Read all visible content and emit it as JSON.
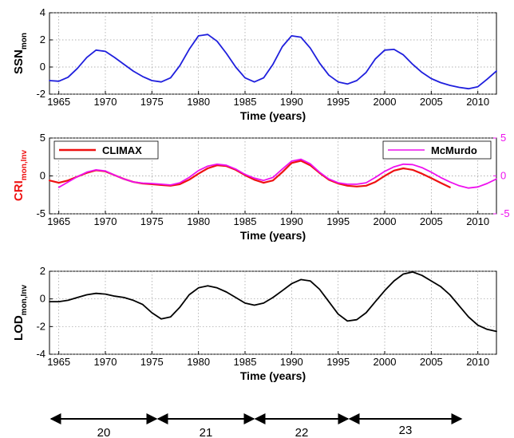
{
  "chart_data": [
    {
      "type": "line",
      "ylabel": "SSN",
      "ylabel_sub": "mon",
      "xlabel": "Time (years)",
      "xlim": [
        1964,
        2012
      ],
      "ylim": [
        -2,
        4
      ],
      "xticks": [
        1965,
        1970,
        1975,
        1980,
        1985,
        1990,
        1995,
        2000,
        2005,
        2010
      ],
      "yticks": [
        -2,
        0,
        2,
        4
      ],
      "grid": true,
      "series": [
        {
          "color": "#1f1fdd",
          "x": [
            1964,
            1965,
            1966,
            1967,
            1968,
            1969,
            1970,
            1971,
            1972,
            1973,
            1974,
            1975,
            1976,
            1977,
            1978,
            1979,
            1980,
            1981,
            1982,
            1983,
            1984,
            1985,
            1986,
            1987,
            1988,
            1989,
            1990,
            1991,
            1992,
            1993,
            1994,
            1995,
            1996,
            1997,
            1998,
            1999,
            2000,
            2001,
            2002,
            2003,
            2004,
            2005,
            2006,
            2007,
            2008,
            2009,
            2010,
            2011,
            2012
          ],
          "y": [
            -1.0,
            -1.05,
            -0.75,
            -0.1,
            0.7,
            1.25,
            1.15,
            0.7,
            0.2,
            -0.3,
            -0.7,
            -1.0,
            -1.1,
            -0.8,
            0.1,
            1.3,
            2.3,
            2.4,
            1.9,
            1.0,
            0.0,
            -0.8,
            -1.1,
            -0.8,
            0.2,
            1.5,
            2.3,
            2.2,
            1.4,
            0.3,
            -0.6,
            -1.1,
            -1.25,
            -1.0,
            -0.4,
            0.6,
            1.25,
            1.3,
            0.9,
            0.2,
            -0.4,
            -0.85,
            -1.15,
            -1.35,
            -1.5,
            -1.6,
            -1.45,
            -0.9,
            -0.3
          ]
        }
      ]
    },
    {
      "type": "line",
      "ylabel": "CRI",
      "ylabel_sub": "mon,Inv",
      "xlabel": "Time (years)",
      "xlim": [
        1964,
        2012
      ],
      "ylim": [
        -5,
        5
      ],
      "ylim_right": [
        -5,
        5
      ],
      "xticks": [
        1965,
        1970,
        1975,
        1980,
        1985,
        1990,
        1995,
        2000,
        2005,
        2010
      ],
      "yticks": [
        -5,
        0,
        5
      ],
      "yticks_right": [
        -5,
        0,
        5
      ],
      "grid": true,
      "legend": [
        "top-left",
        "top-right"
      ],
      "series": [
        {
          "name": "CLIMAX",
          "color": "#ee1111",
          "x": [
            1964,
            1965,
            1966,
            1967,
            1968,
            1969,
            1970,
            1971,
            1972,
            1973,
            1974,
            1975,
            1976,
            1977,
            1978,
            1979,
            1980,
            1981,
            1982,
            1983,
            1984,
            1985,
            1986,
            1987,
            1988,
            1989,
            1990,
            1991,
            1992,
            1993,
            1994,
            1995,
            1996,
            1997,
            1998,
            1999,
            2000,
            2001,
            2002,
            2003,
            2004,
            2005,
            2006,
            2007
          ],
          "y": [
            -0.6,
            -0.9,
            -0.6,
            -0.1,
            0.4,
            0.75,
            0.6,
            0.1,
            -0.4,
            -0.8,
            -1.0,
            -1.1,
            -1.2,
            -1.3,
            -1.1,
            -0.5,
            0.3,
            1.0,
            1.4,
            1.3,
            0.8,
            0.1,
            -0.5,
            -0.9,
            -0.6,
            0.5,
            1.7,
            2.0,
            1.4,
            0.4,
            -0.5,
            -1.0,
            -1.3,
            -1.4,
            -1.3,
            -0.8,
            0.0,
            0.7,
            1.0,
            0.8,
            0.3,
            -0.3,
            -0.9,
            -1.5
          ]
        },
        {
          "name": "McMurdo",
          "color": "#ee11ee",
          "x": [
            1965,
            1966,
            1967,
            1968,
            1969,
            1970,
            1971,
            1972,
            1973,
            1974,
            1975,
            1976,
            1977,
            1978,
            1979,
            1980,
            1981,
            1982,
            1983,
            1984,
            1985,
            1986,
            1987,
            1988,
            1989,
            1990,
            1991,
            1992,
            1993,
            1994,
            1995,
            1996,
            1997,
            1998,
            1999,
            2000,
            2001,
            2002,
            2003,
            2004,
            2005,
            2006,
            2007,
            2008,
            2009,
            2010,
            2011,
            2012
          ],
          "y": [
            -1.5,
            -0.8,
            -0.1,
            0.5,
            0.8,
            0.65,
            0.1,
            -0.4,
            -0.8,
            -0.95,
            -1.0,
            -1.1,
            -1.2,
            -0.9,
            -0.2,
            0.7,
            1.3,
            1.55,
            1.4,
            0.9,
            0.2,
            -0.3,
            -0.6,
            -0.2,
            0.9,
            1.95,
            2.2,
            1.6,
            0.5,
            -0.4,
            -0.9,
            -1.1,
            -1.1,
            -0.9,
            -0.2,
            0.6,
            1.2,
            1.55,
            1.5,
            1.1,
            0.5,
            -0.2,
            -0.8,
            -1.3,
            -1.6,
            -1.45,
            -1.0,
            -0.4
          ]
        }
      ]
    },
    {
      "type": "line",
      "ylabel": "LOD",
      "ylabel_sub": "mon,Inv",
      "xlabel": "Time (years)",
      "xlim": [
        1964,
        2012
      ],
      "ylim": [
        -4,
        2
      ],
      "xticks": [
        1965,
        1970,
        1975,
        1980,
        1985,
        1990,
        1995,
        2000,
        2005,
        2010
      ],
      "yticks": [
        -4,
        -2,
        0,
        2
      ],
      "grid": true,
      "series": [
        {
          "color": "#000000",
          "x": [
            1964,
            1965,
            1966,
            1967,
            1968,
            1969,
            1970,
            1971,
            1972,
            1973,
            1974,
            1975,
            1976,
            1977,
            1978,
            1979,
            1980,
            1981,
            1982,
            1983,
            1984,
            1985,
            1986,
            1987,
            1988,
            1989,
            1990,
            1991,
            1992,
            1993,
            1994,
            1995,
            1996,
            1997,
            1998,
            1999,
            2000,
            2001,
            2002,
            2003,
            2004,
            2005,
            2006,
            2007,
            2008,
            2009,
            2010,
            2011,
            2012
          ],
          "y": [
            -0.2,
            -0.2,
            -0.1,
            0.1,
            0.3,
            0.4,
            0.35,
            0.2,
            0.1,
            -0.1,
            -0.4,
            -1.0,
            -1.45,
            -1.3,
            -0.6,
            0.3,
            0.8,
            0.95,
            0.8,
            0.5,
            0.1,
            -0.3,
            -0.45,
            -0.3,
            0.1,
            0.6,
            1.1,
            1.4,
            1.3,
            0.7,
            -0.2,
            -1.1,
            -1.6,
            -1.5,
            -1.0,
            -0.2,
            0.6,
            1.3,
            1.8,
            1.95,
            1.7,
            1.3,
            0.9,
            0.3,
            -0.5,
            -1.3,
            -1.9,
            -2.2,
            -2.35
          ]
        }
      ]
    }
  ],
  "cycles": {
    "labels": [
      "20",
      "21",
      "22",
      "23"
    ]
  }
}
